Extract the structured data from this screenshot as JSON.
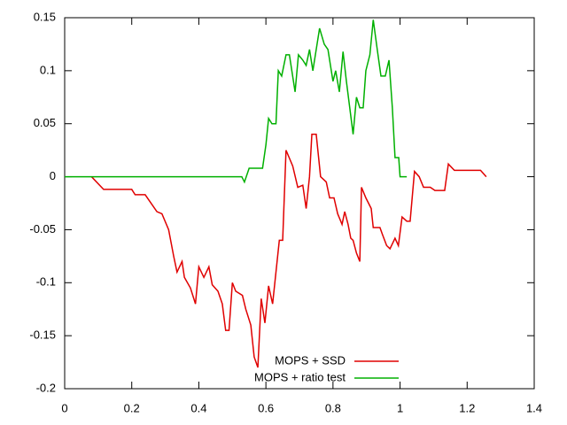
{
  "chart_data": {
    "type": "line",
    "xlim": [
      0,
      1.4
    ],
    "xticks": [
      0,
      0.2,
      0.4,
      0.6,
      0.8,
      1,
      1.2,
      1.4
    ],
    "ylim": [
      -0.2,
      0.15
    ],
    "yticks": [
      0.15,
      0.1,
      0.05,
      0,
      -0.05,
      -0.1,
      -0.15,
      -0.2
    ],
    "grid": false,
    "legend": "bottom",
    "series": [
      {
        "name": "MOPS + SSD",
        "color": "#e00000",
        "x": [
          0.08,
          0.116,
          0.2,
          0.21,
          0.24,
          0.275,
          0.29,
          0.31,
          0.325,
          0.335,
          0.35,
          0.357,
          0.375,
          0.39,
          0.4,
          0.415,
          0.43,
          0.44,
          0.457,
          0.47,
          0.48,
          0.49,
          0.5,
          0.51,
          0.53,
          0.54,
          0.555,
          0.565,
          0.576,
          0.586,
          0.597,
          0.608,
          0.62,
          0.64,
          0.65,
          0.66,
          0.68,
          0.695,
          0.71,
          0.72,
          0.73,
          0.737,
          0.75,
          0.763,
          0.78,
          0.79,
          0.803,
          0.814,
          0.827,
          0.835,
          0.845,
          0.853,
          0.86,
          0.87,
          0.88,
          0.885,
          0.898,
          0.914,
          0.92,
          0.94,
          0.948,
          0.96,
          0.97,
          0.985,
          0.995,
          1.006,
          1.02,
          1.03,
          1.043,
          1.057,
          1.07,
          1.09,
          1.104,
          1.133,
          1.144,
          1.162,
          1.24,
          1.257
        ],
        "values": [
          0,
          -0.012,
          -0.012,
          -0.017,
          -0.017,
          -0.033,
          -0.035,
          -0.05,
          -0.075,
          -0.09,
          -0.08,
          -0.095,
          -0.105,
          -0.12,
          -0.085,
          -0.095,
          -0.085,
          -0.102,
          -0.108,
          -0.12,
          -0.145,
          -0.145,
          -0.1,
          -0.108,
          -0.112,
          -0.125,
          -0.14,
          -0.17,
          -0.18,
          -0.115,
          -0.138,
          -0.103,
          -0.12,
          -0.06,
          -0.06,
          0.025,
          0.01,
          -0.01,
          -0.008,
          -0.03,
          0,
          0.04,
          0.04,
          0,
          -0.005,
          -0.02,
          -0.02,
          -0.035,
          -0.045,
          -0.033,
          -0.045,
          -0.058,
          -0.06,
          -0.072,
          -0.08,
          -0.01,
          -0.02,
          -0.03,
          -0.048,
          -0.048,
          -0.055,
          -0.065,
          -0.068,
          -0.058,
          -0.065,
          -0.038,
          -0.042,
          -0.042,
          0.005,
          0,
          -0.01,
          -0.01,
          -0.013,
          -0.013,
          0.012,
          0.006,
          0.006,
          0
        ]
      },
      {
        "name": "MOPS + ratio test",
        "color": "#00b000",
        "x": [
          0,
          0.528,
          0.536,
          0.55,
          0.59,
          0.6,
          0.608,
          0.618,
          0.63,
          0.637,
          0.647,
          0.66,
          0.67,
          0.687,
          0.697,
          0.71,
          0.72,
          0.73,
          0.74,
          0.76,
          0.774,
          0.785,
          0.8,
          0.808,
          0.819,
          0.83,
          0.84,
          0.848,
          0.86,
          0.87,
          0.88,
          0.89,
          0.898,
          0.91,
          0.92,
          0.932,
          0.943,
          0.956,
          0.967,
          0.977,
          0.985,
          0.996,
          1,
          1.02
        ],
        "values": [
          0,
          0,
          -0.005,
          0.008,
          0.008,
          0.03,
          0.055,
          0.05,
          0.05,
          0.1,
          0.095,
          0.115,
          0.115,
          0.08,
          0.115,
          0.11,
          0.105,
          0.12,
          0.1,
          0.14,
          0.125,
          0.12,
          0.09,
          0.1,
          0.08,
          0.118,
          0.09,
          0.07,
          0.04,
          0.075,
          0.065,
          0.065,
          0.1,
          0.115,
          0.148,
          0.12,
          0.095,
          0.095,
          0.11,
          0.065,
          0.018,
          0.018,
          0,
          0
        ]
      }
    ]
  }
}
